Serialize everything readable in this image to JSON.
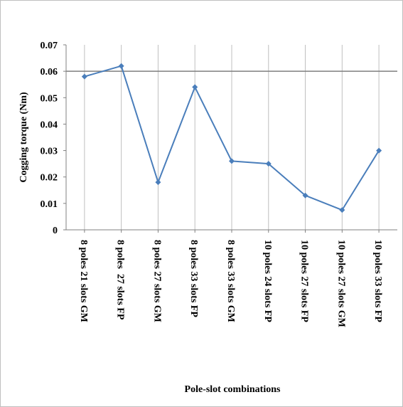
{
  "chart_data": {
    "type": "line",
    "title": "",
    "xlabel": "Pole-slot combinations",
    "ylabel": "Cogging torque (Nm)",
    "ylim": [
      0,
      0.07
    ],
    "yticks": [
      "0",
      "0.01",
      "0.02",
      "0.03",
      "0.04",
      "0.05",
      "0.06",
      "0.07"
    ],
    "categories": [
      "8 poles 21 slots GM",
      "8 poles  27 slots FP",
      "8 poles 27 slots GM",
      "8 poles 33 slots FP",
      "8 poles 33 slots GM",
      "10 poles 24 slots FP",
      "10 poles 27 slots FP",
      "10 poles 27 slots GM",
      "10 poles 33 slots FP"
    ],
    "series": [
      {
        "values": [
          0.058,
          0.062,
          0.018,
          0.054,
          0.026,
          0.025,
          0.013,
          0.0075,
          0.03
        ]
      }
    ],
    "grid": {
      "vertical": true,
      "horizontal_major_at": 0.06
    },
    "legend": "none",
    "colors": {
      "line": "#4a7ebb",
      "grid": "#bfbfbf",
      "axis": "#808080",
      "major_grid": "#7f7f7f"
    }
  }
}
